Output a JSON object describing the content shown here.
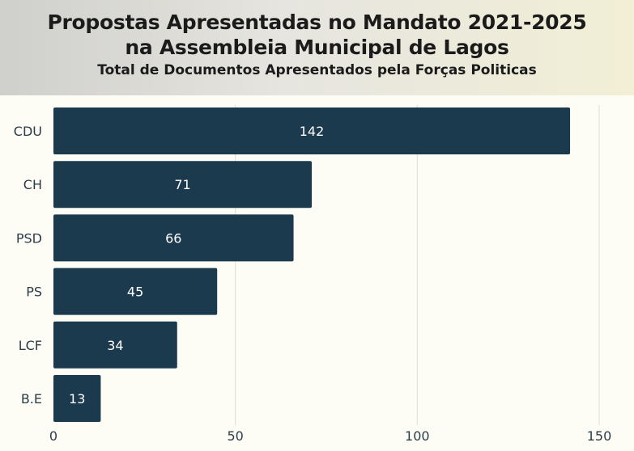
{
  "chart_data": {
    "type": "bar",
    "orientation": "horizontal",
    "title_line1": "Propostas Apresentadas no Mandato 2021-2025",
    "title_line2": "na Assembleia Municipal de Lagos",
    "subtitle": "Total de Documentos Apresentados pela Forças Politicas",
    "categories": [
      "CDU",
      "CH",
      "PSD",
      "PS",
      "LCF",
      "B.E"
    ],
    "values": [
      142,
      71,
      66,
      45,
      34,
      13
    ],
    "xlim": [
      0,
      150
    ],
    "x_ticks": [
      0,
      50,
      100,
      150
    ],
    "grid": true,
    "bar_color": "#1b3a4e",
    "data_labels": true
  }
}
